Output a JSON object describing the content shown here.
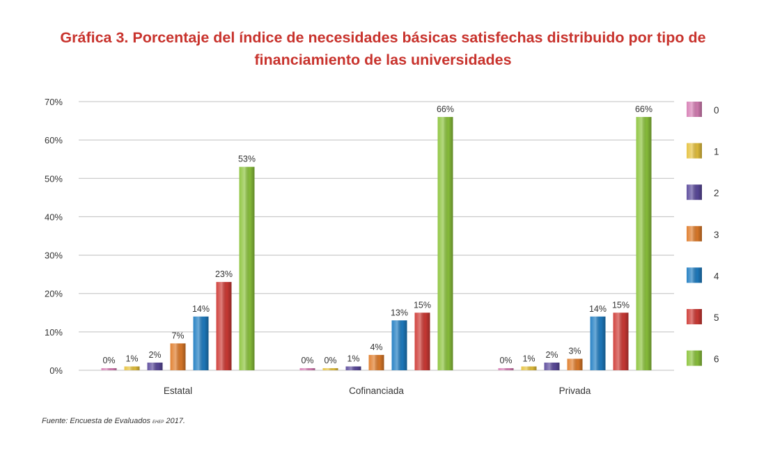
{
  "title": "Gráfica 3. Porcentaje del índice de necesidades básicas satisfechas distribuido por tipo de financiamiento de las universidades",
  "source": {
    "prefix": "Fuente: Encuesta de Evaluados ",
    "acronym": "EHEP",
    "suffix": " 2017."
  },
  "chart_data": {
    "type": "bar",
    "categories": [
      "Estatal",
      "Cofinanciada",
      "Privada"
    ],
    "series": [
      {
        "name": "0",
        "color": "#d77fb5",
        "values": [
          0,
          0,
          0
        ]
      },
      {
        "name": "1",
        "color": "#e6c23e",
        "values": [
          1,
          0,
          1
        ]
      },
      {
        "name": "2",
        "color": "#5b4a9c",
        "values": [
          2,
          1,
          2
        ]
      },
      {
        "name": "3",
        "color": "#e07c2a",
        "values": [
          7,
          4,
          3
        ]
      },
      {
        "name": "4",
        "color": "#1f7dc2",
        "values": [
          14,
          13,
          14
        ]
      },
      {
        "name": "5",
        "color": "#cf3a35",
        "values": [
          23,
          15,
          15
        ]
      },
      {
        "name": "6",
        "color": "#8cc43c",
        "values": [
          53,
          66,
          66
        ]
      }
    ],
    "data_labels": [
      [
        "0%",
        "1%",
        "2%",
        "7%",
        "14%",
        "23%",
        "53%"
      ],
      [
        "0%",
        "0%",
        "1%",
        "4%",
        "13%",
        "15%",
        "66%"
      ],
      [
        "0%",
        "1%",
        "2%",
        "3%",
        "14%",
        "15%",
        "66%"
      ]
    ],
    "y_ticks": [
      "0%",
      "10%",
      "20%",
      "30%",
      "40%",
      "50%",
      "60%",
      "70%"
    ],
    "ylim": [
      0,
      70
    ],
    "grid": true,
    "legend": "right"
  }
}
